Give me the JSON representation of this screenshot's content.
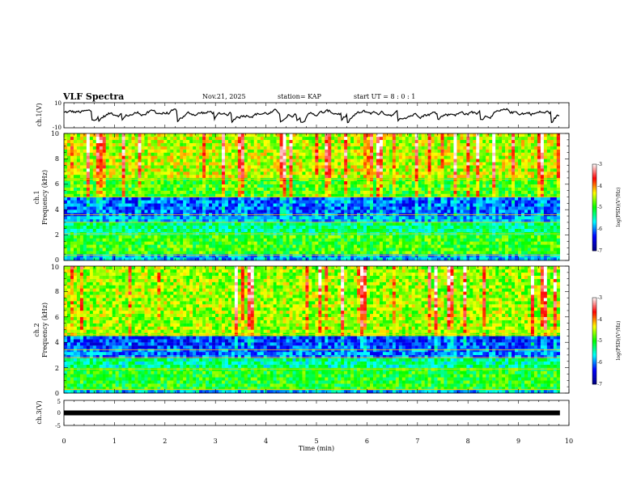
{
  "header": {
    "title": "VLF Spectra",
    "date": "Nov.21, 2025",
    "station": "station= KAP",
    "start": "start  UT =   8 : 0  : 1"
  },
  "chart_data": [
    {
      "type": "line",
      "name": "ch1-waveform",
      "ylabel": "ch.1(V)",
      "ylim": [
        -10,
        10
      ],
      "ytick_labels": [
        "10",
        "-10"
      ],
      "description_values": {
        "typical_range": [
          -3,
          7
        ],
        "mean": 2
      }
    },
    {
      "type": "heatmap",
      "name": "ch1-spectrogram",
      "ylabel_top": "ch.1",
      "ylabel": "Frequency (kHz)",
      "ylim": [
        0,
        10
      ],
      "ytick_labels": [
        "0",
        "2",
        "4",
        "6",
        "8",
        "10"
      ],
      "colorbar": {
        "label": "log(PSD)(V²/Hz)",
        "range": [
          -7,
          -3
        ],
        "tick_labels": [
          "-3",
          "-4",
          "-5",
          "-6",
          "-7"
        ],
        "colors": [
          "#000080",
          "#0000ff",
          "#00ffff",
          "#00ff00",
          "#ffff00",
          "#ff0000",
          "#ffffff"
        ]
      },
      "bands_khz": [
        {
          "from": 0,
          "to": 0.4,
          "level": -5.8
        },
        {
          "from": 0.4,
          "to": 2.1,
          "level": -4.9
        },
        {
          "from": 2.1,
          "to": 3.0,
          "level": -5.3
        },
        {
          "from": 3.0,
          "to": 3.6,
          "level": -5.8
        },
        {
          "from": 3.6,
          "to": 5.0,
          "level": -6.1
        },
        {
          "from": 5.0,
          "to": 6.4,
          "level": -4.9
        },
        {
          "from": 6.4,
          "to": 10,
          "level": -4.5
        }
      ]
    },
    {
      "type": "heatmap",
      "name": "ch2-spectrogram",
      "ylabel_top": "ch.2",
      "ylabel": "Frequency (kHz)",
      "ylim": [
        0,
        10
      ],
      "ytick_labels": [
        "0",
        "2",
        "4",
        "6",
        "8",
        "10"
      ],
      "colorbar": {
        "label": "log(PSD)(V²/Hz)",
        "range": [
          -7,
          -3
        ],
        "tick_labels": [
          "-3",
          "-4",
          "-5",
          "-6",
          "-7"
        ],
        "colors": [
          "#000080",
          "#0000ff",
          "#00ffff",
          "#00ff00",
          "#ffff00",
          "#ff0000",
          "#ffffff"
        ]
      },
      "bands_khz": [
        {
          "from": 0,
          "to": 0.3,
          "level": -5.8
        },
        {
          "from": 0.3,
          "to": 1.9,
          "level": -5.0
        },
        {
          "from": 1.9,
          "to": 2.8,
          "level": -5.4
        },
        {
          "from": 2.8,
          "to": 3.4,
          "level": -6.0
        },
        {
          "from": 3.4,
          "to": 4.6,
          "level": -6.2
        },
        {
          "from": 4.6,
          "to": 10,
          "level": -4.6
        }
      ]
    },
    {
      "type": "line",
      "name": "ch3-waveform",
      "ylabel": "ch.3(V)",
      "ylim": [
        -5,
        5
      ],
      "ytick_labels": [
        "5",
        "0",
        "-5"
      ],
      "constant_value": 0
    }
  ],
  "xaxis": {
    "label": "Time (min)",
    "range": [
      0,
      10
    ],
    "tick_labels": [
      "0",
      "1",
      "2",
      "3",
      "4",
      "5",
      "6",
      "7",
      "8",
      "9",
      "10"
    ],
    "data_end": 9.82
  }
}
